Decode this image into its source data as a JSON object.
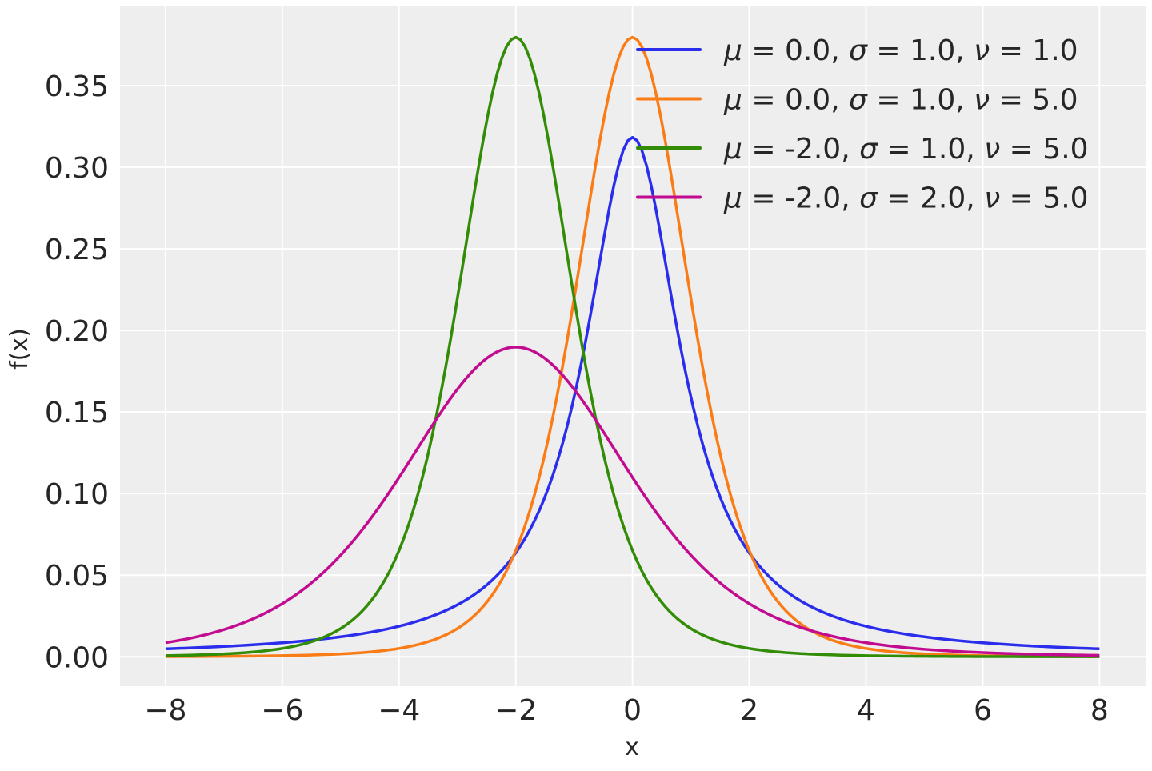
{
  "chart_data": {
    "type": "line",
    "title": "",
    "xlabel": "x",
    "ylabel": "f(x)",
    "xlim": [
      -8.78,
      8.79
    ],
    "ylim": [
      -0.018,
      0.3985
    ],
    "x_range": [
      -8,
      8
    ],
    "xticks": [
      -8,
      -6,
      -4,
      -2,
      0,
      2,
      4,
      6,
      8
    ],
    "xtick_labels": [
      "−8",
      "−6",
      "−4",
      "−2",
      "0",
      "2",
      "4",
      "6",
      "8"
    ],
    "yticks": [
      0,
      0.05,
      0.1,
      0.15,
      0.2,
      0.25,
      0.3,
      0.35
    ],
    "ytick_labels": [
      "0.00",
      "0.05",
      "0.10",
      "0.15",
      "0.20",
      "0.25",
      "0.30",
      "0.35"
    ],
    "grid": true,
    "background": "#eeeeee",
    "legend_placement": "top-right",
    "series": [
      {
        "name": "μ = 0.0, σ = 1.0, ν = 1.0",
        "mu": 0.0,
        "sigma": 1.0,
        "nu": 1.0,
        "color": "#2a2eec",
        "legend": {
          "mu": "0.0",
          "sigma": "1.0",
          "nu": "1.0"
        }
      },
      {
        "name": "μ = 0.0, σ = 1.0, ν = 5.0",
        "mu": 0.0,
        "sigma": 1.0,
        "nu": 5.0,
        "color": "#fa7c17",
        "legend": {
          "mu": "0.0",
          "sigma": "1.0",
          "nu": "5.0"
        }
      },
      {
        "name": "μ = -2.0, σ = 1.0, ν = 5.0",
        "mu": -2.0,
        "sigma": 1.0,
        "nu": 5.0,
        "color": "#328c06",
        "legend": {
          "mu": "-2.0",
          "sigma": "1.0",
          "nu": "5.0"
        }
      },
      {
        "name": "μ = -2.0, σ = 2.0, ν = 5.0",
        "mu": -2.0,
        "sigma": 2.0,
        "nu": 5.0,
        "color": "#c10c90",
        "legend": {
          "mu": "-2.0",
          "sigma": "2.0",
          "nu": "5.0"
        }
      }
    ]
  }
}
